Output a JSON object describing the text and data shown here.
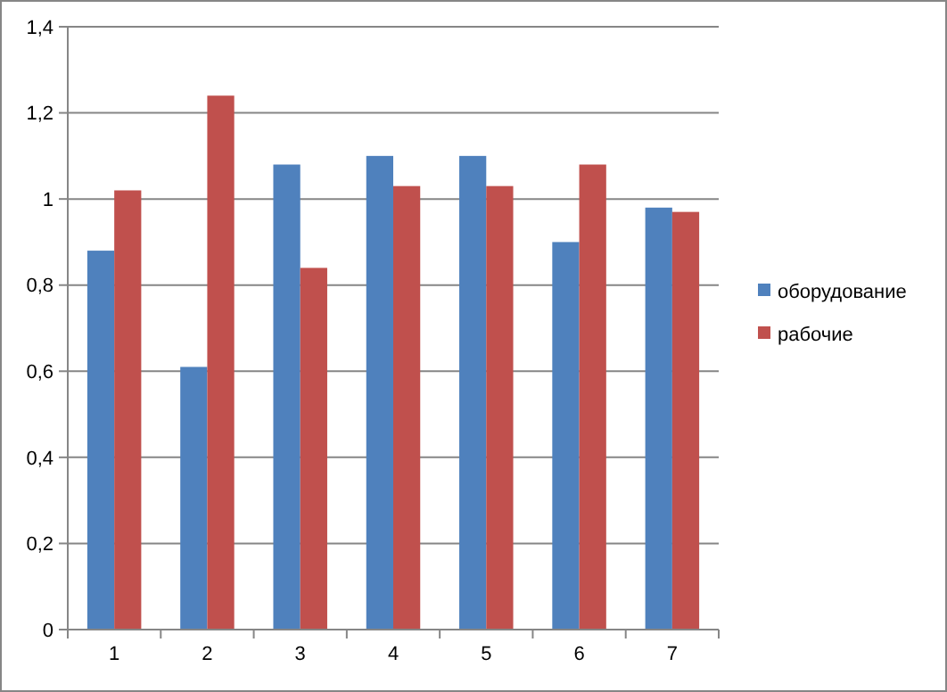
{
  "chart_data": {
    "type": "bar",
    "categories": [
      "1",
      "2",
      "3",
      "4",
      "5",
      "6",
      "7"
    ],
    "series": [
      {
        "name": "оборудование",
        "color": "#4f81bd",
        "values": [
          0.88,
          0.61,
          1.08,
          1.1,
          1.1,
          0.9,
          0.98
        ]
      },
      {
        "name": "рабочие",
        "color": "#c0504d",
        "values": [
          1.02,
          1.24,
          0.84,
          1.03,
          1.03,
          1.08,
          0.97
        ]
      }
    ],
    "ylim": [
      0,
      1.4
    ],
    "yticks": [
      0,
      {
        "value": 0.2,
        "label": "0,2"
      },
      {
        "value": 0.4,
        "label": "0,4"
      },
      {
        "value": 0.6,
        "label": "0,6"
      },
      {
        "value": 0.8,
        "label": "0,8"
      },
      1,
      {
        "value": 1.2,
        "label": "1,2"
      },
      {
        "value": 1.4,
        "label": "1,4"
      }
    ],
    "grid": "y",
    "legend": "right"
  }
}
